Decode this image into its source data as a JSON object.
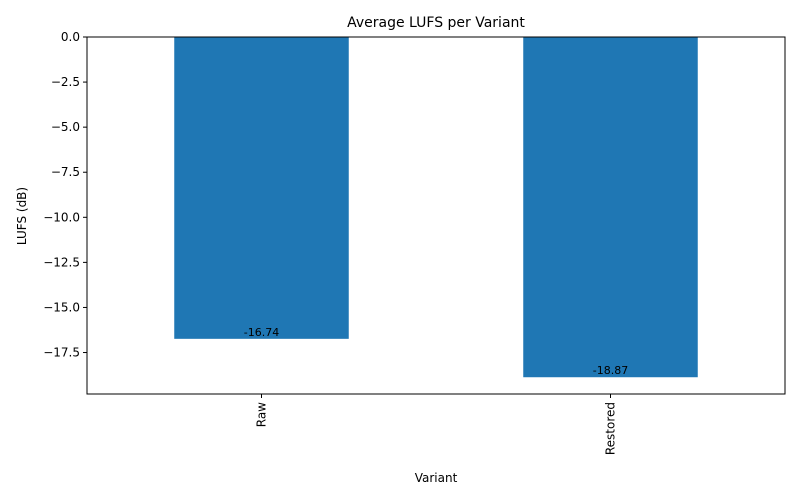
{
  "chart_data": {
    "type": "bar",
    "title": "Average LUFS per Variant",
    "xlabel": "Variant",
    "ylabel": "LUFS (dB)",
    "categories": [
      "Raw",
      "Restored"
    ],
    "values": [
      -16.74,
      -18.87
    ],
    "value_labels": [
      "-16.74",
      "-18.87"
    ],
    "ylim": [
      -19.8,
      0.0
    ],
    "yticks": [
      0.0,
      -2.5,
      -5.0,
      -7.5,
      -10.0,
      -12.5,
      -15.0,
      -17.5
    ],
    "ytick_labels": [
      "0.0",
      "−2.5",
      "−5.0",
      "−7.5",
      "−10.0",
      "−12.5",
      "−15.0",
      "−17.5"
    ],
    "bar_color": "#1f77b4",
    "grid": false,
    "legend": false
  }
}
